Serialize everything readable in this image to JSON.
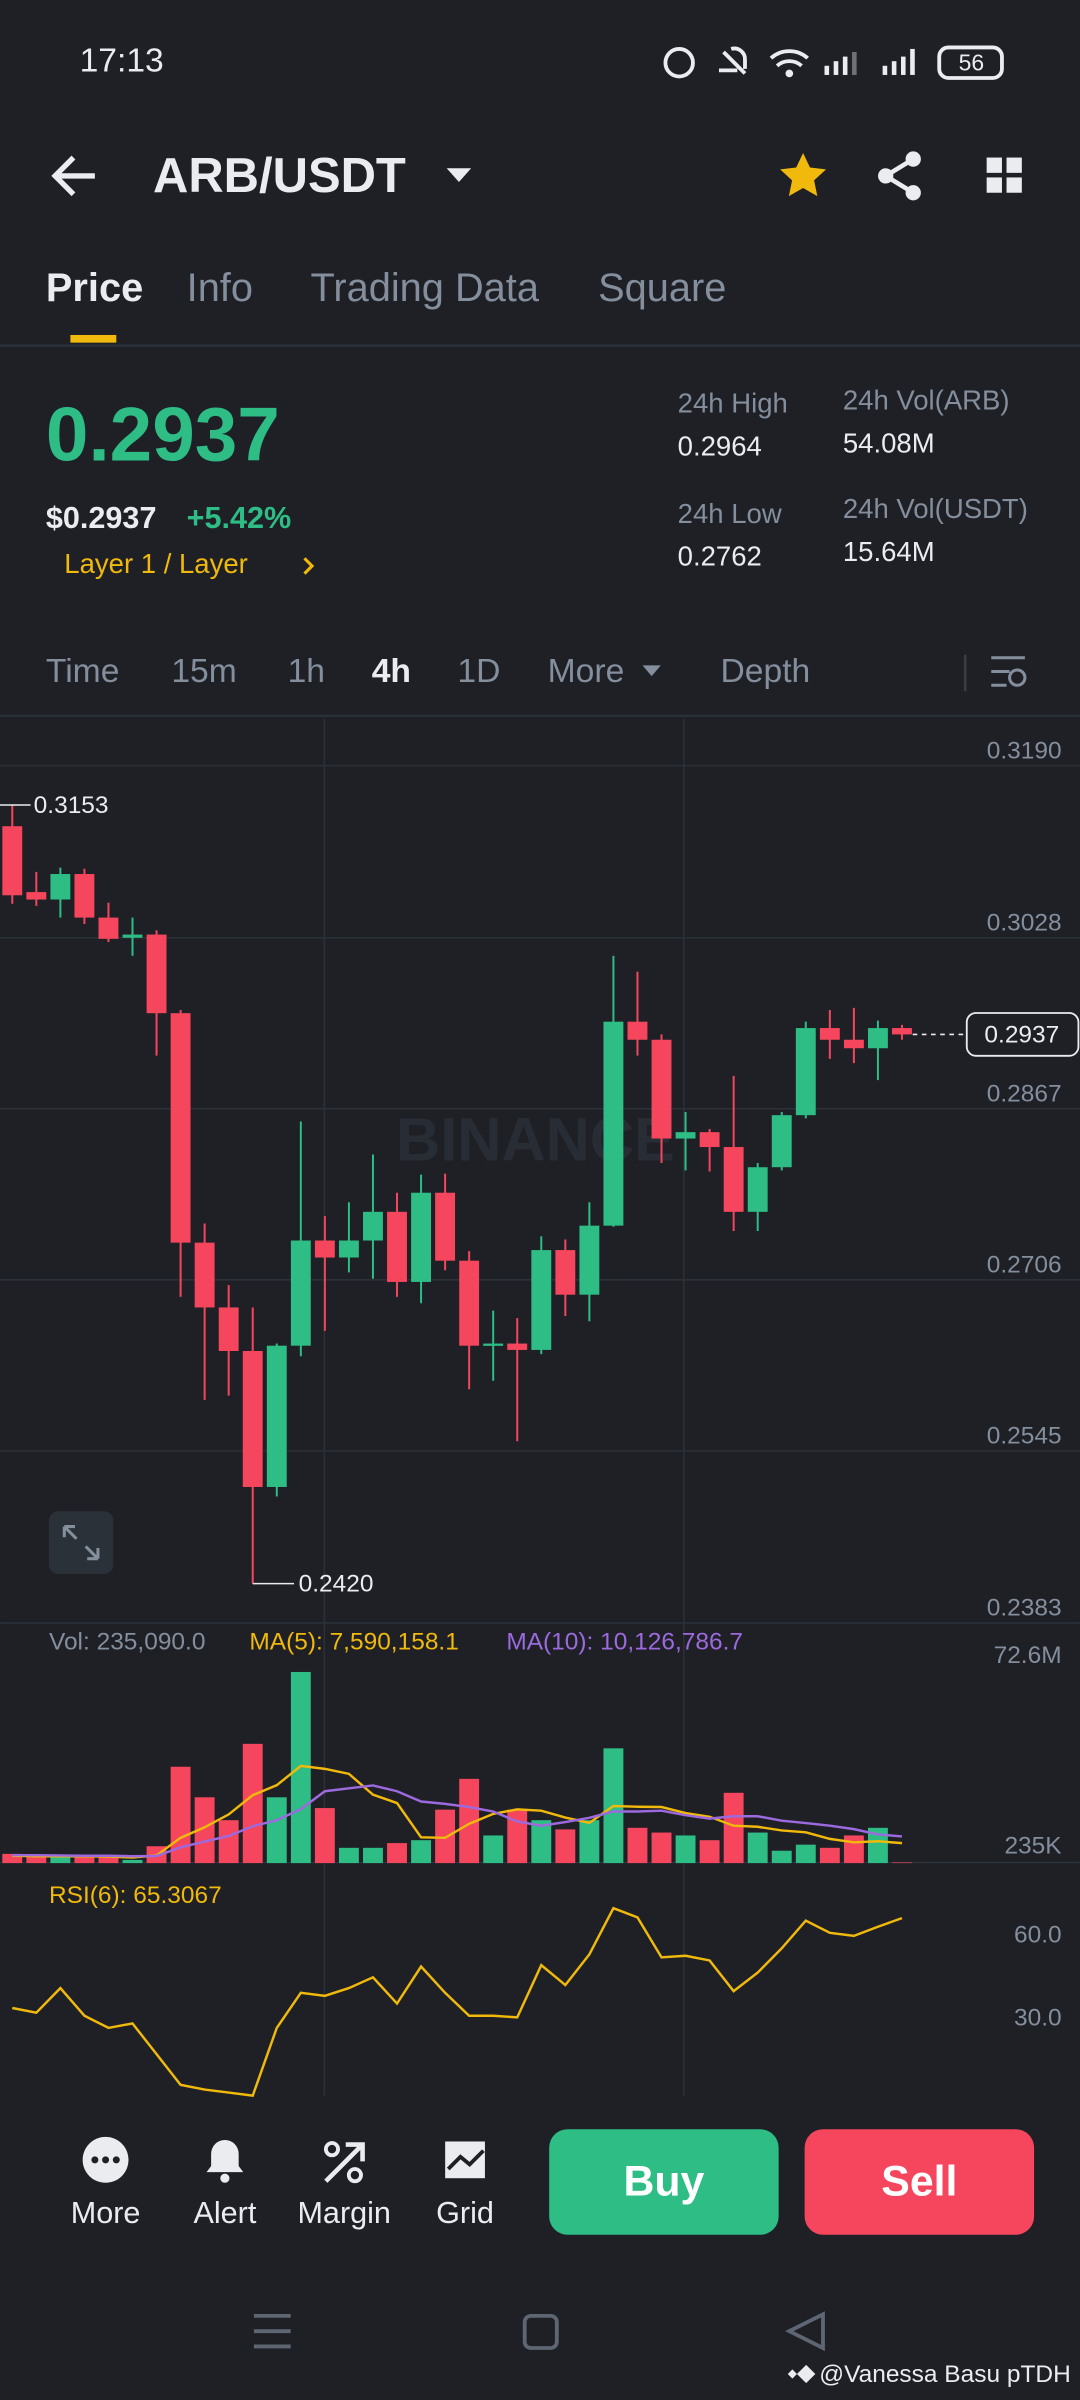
{
  "status_bar": {
    "time": "17:13",
    "battery": "56"
  },
  "header": {
    "pair": "ARB/USDT"
  },
  "tabs": [
    "Price",
    "Info",
    "Trading Data",
    "Square"
  ],
  "ticker": {
    "price": "0.2937",
    "usd_price": "$0.2937",
    "change": "+5.42%",
    "tag": "Layer 1 / Layer",
    "stats": [
      {
        "label": "24h High",
        "value": "0.2964"
      },
      {
        "label": "24h Low",
        "value": "0.2762"
      },
      {
        "label": "24h Vol(ARB)",
        "value": "54.08M"
      },
      {
        "label": "24h Vol(USDT)",
        "value": "15.64M"
      }
    ]
  },
  "intervals": [
    "Time",
    "15m",
    "1h",
    "4h",
    "1D",
    "More",
    "Depth"
  ],
  "chart_data": [
    {
      "type": "candlestick",
      "watermark": "BINANCE",
      "up_color": "#2ebd85",
      "down_color": "#f6465d",
      "open": [
        0.3133,
        0.3071,
        0.3064,
        0.3088,
        0.3047,
        0.3028,
        0.3031,
        0.2957,
        0.2741,
        0.268,
        0.2639,
        0.2511,
        0.2644,
        0.2743,
        0.2727,
        0.2743,
        0.277,
        0.2704,
        0.2788,
        0.2724,
        0.2644,
        0.2646,
        0.264,
        0.2734,
        0.2692,
        0.2757,
        0.2949,
        0.2932,
        0.2839,
        0.2845,
        0.2831,
        0.277,
        0.2812,
        0.2861,
        0.2943,
        0.2932,
        0.2924,
        0.2943
      ],
      "high": [
        0.3153,
        0.309,
        0.3094,
        0.3093,
        0.3061,
        0.3047,
        0.3035,
        0.296,
        0.2759,
        0.2701,
        0.268,
        0.2646,
        0.2855,
        0.2766,
        0.2779,
        0.2824,
        0.2788,
        0.2805,
        0.2806,
        0.2733,
        0.2677,
        0.267,
        0.2747,
        0.2744,
        0.2779,
        0.3011,
        0.2996,
        0.2937,
        0.2864,
        0.2848,
        0.2898,
        0.2816,
        0.2864,
        0.2949,
        0.296,
        0.2962,
        0.295,
        0.2946
      ],
      "low": [
        0.306,
        0.3058,
        0.3047,
        0.3041,
        0.3024,
        0.3011,
        0.2917,
        0.269,
        0.2593,
        0.2597,
        0.242,
        0.2502,
        0.2634,
        0.2658,
        0.2713,
        0.2707,
        0.269,
        0.2684,
        0.2715,
        0.2603,
        0.2611,
        0.2554,
        0.2636,
        0.2672,
        0.2667,
        0.2756,
        0.2917,
        0.2816,
        0.2809,
        0.2808,
        0.2752,
        0.2752,
        0.2809,
        0.2858,
        0.2914,
        0.291,
        0.2894,
        0.2932
      ],
      "close": [
        0.3068,
        0.3064,
        0.3088,
        0.3047,
        0.3027,
        0.3031,
        0.2957,
        0.2741,
        0.268,
        0.2639,
        0.2511,
        0.2644,
        0.2743,
        0.2727,
        0.2743,
        0.277,
        0.2704,
        0.2788,
        0.2724,
        0.2644,
        0.2646,
        0.264,
        0.2734,
        0.2692,
        0.2757,
        0.2949,
        0.2932,
        0.2839,
        0.2845,
        0.2831,
        0.277,
        0.2812,
        0.2861,
        0.2943,
        0.2932,
        0.2924,
        0.2943,
        0.2937
      ],
      "ylim": [
        0.2383,
        0.3234
      ],
      "yticks": [
        {
          "value": 0.319,
          "label": "0.3190"
        },
        0.3028,
        0.2867,
        0.2706,
        0.2545,
        0.2383
      ],
      "high_mark": 0.3153,
      "low_mark": {
        "value": 0.242,
        "label": "0.2420"
      },
      "last_price": 0.2937,
      "grid": true
    },
    {
      "type": "volume",
      "annotations": [
        "Vol: 235,090.0",
        "MA(5): 7,590,158.1",
        "MA(10): 10,126,786.7"
      ],
      "values": [
        3.5,
        2.3,
        2.3,
        2.3,
        2.3,
        1.2,
        6.4,
        36.6,
        25,
        16.3,
        45.3,
        25,
        72.6,
        20.9,
        5.8,
        5.8,
        7.6,
        8.7,
        20.3,
        32,
        10.5,
        20.3,
        16.3,
        12.8,
        16.3,
        43.6,
        13.4,
        11.6,
        10.5,
        8.7,
        26.7,
        11.6,
        4.7,
        7,
        5.8,
        10.5,
        13.4,
        0.23509
      ],
      "series": [
        {
          "color": "#f0b90b",
          "values": [
            2.8,
            2.6,
            2.6,
            2.6,
            2.5,
            2.1,
            2.9,
            9.6,
            13.6,
            18.5,
            25.8,
            29.6,
            36.9,
            35.8,
            33.9,
            26.0,
            22.8,
            9.8,
            9.6,
            14.9,
            18.7,
            20.4,
            19.9,
            17.3,
            15.3,
            21.7,
            21.4,
            21.3,
            19.0,
            17.6,
            14.2,
            13.8,
            12.4,
            11.7,
            9.2,
            7.9,
            8.3,
            7.59
          ]
        },
        {
          "color": "#9c6ade",
          "values": [
            3.0,
            3.0,
            2.9,
            2.8,
            2.8,
            2.6,
            2.7,
            6.0,
            8.2,
            10.3,
            14.0,
            16.3,
            20.5,
            27.3,
            28.4,
            29.5,
            27.3,
            23.4,
            22.5,
            21.3,
            19.6,
            15.8,
            14.2,
            15.6,
            17.2,
            19.6,
            19.6,
            19.9,
            18.2,
            16.9,
            17.8,
            17.8,
            16.1,
            15.2,
            14.2,
            12.9,
            10.9,
            10.127
          ]
        }
      ],
      "ylim": [
        0,
        88.9
      ],
      "yticks": [
        {
          "value": 72.6,
          "label": "72.6M"
        },
        {
          "value": 0.235,
          "label": "235K"
        }
      ]
    },
    {
      "type": "line",
      "annotations": [
        "RSI(6): 65.3067"
      ],
      "color": "#f0b90b",
      "values": [
        32.8,
        31.1,
        40,
        30,
        25.6,
        27.2,
        16.1,
        5,
        3.3,
        2.2,
        1.1,
        25.6,
        38.3,
        37.2,
        40,
        43.9,
        34.4,
        47.8,
        38.3,
        30,
        30,
        29.4,
        48.3,
        41.1,
        52.2,
        68.9,
        65.6,
        51.1,
        51.7,
        50,
        38.9,
        45.6,
        54.4,
        64.4,
        60,
        58.9,
        62.2,
        65.3067
      ],
      "ylim": [
        0,
        83
      ],
      "yticks": [
        {
          "value": 60,
          "label": "60.0"
        },
        {
          "value": 30,
          "label": "30.0"
        }
      ]
    }
  ],
  "actions": [
    "More",
    "Alert",
    "Margin",
    "Grid"
  ],
  "buy": "Buy",
  "sell": "Sell",
  "user_watermark": "@Vanessa Basu pTDH"
}
